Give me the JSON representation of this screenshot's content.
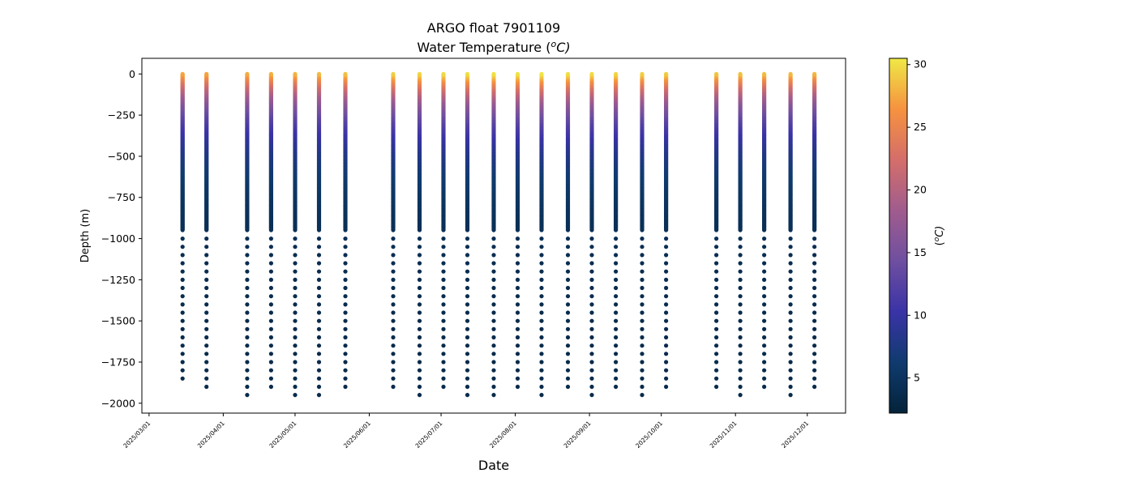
{
  "chart_data": {
    "type": "scatter",
    "title": "ARGO float 7901109",
    "subtitle": "Water Temperature (",
    "subtitle_unit_sup": "o",
    "subtitle_unit": "C)",
    "xlabel": "Date",
    "ylabel": "Depth (m)",
    "ylim": [
      -2060,
      95
    ],
    "xlim": [
      "2025-02-26",
      "2025-12-17"
    ],
    "grid": false,
    "x_ticks": [
      "2025/03/01",
      "2025/04/01",
      "2025/05/01",
      "2025/06/01",
      "2025/07/01",
      "2025/08/01",
      "2025/09/01",
      "2025/10/01",
      "2025/11/01",
      "2025/12/01"
    ],
    "y_ticks": [
      0,
      -250,
      -500,
      -750,
      -1000,
      -1250,
      -1500,
      -1750,
      -2000
    ],
    "y_tick_labels": [
      "0",
      "−250",
      "−500",
      "−750",
      "−1000",
      "−1250",
      "−1500",
      "−1750",
      "−2000"
    ],
    "colorbar": {
      "label_prefix": "(",
      "label_sup": "o",
      "label_suffix": "C)",
      "range": [
        2.2,
        30.5
      ],
      "ticks": [
        5,
        10,
        15,
        20,
        25,
        30
      ],
      "colormap": "thermal",
      "colors": [
        "#04233a",
        "#103b6e",
        "#3a33a6",
        "#6f4fa0",
        "#a05c8e",
        "#d46e6a",
        "#f6923f",
        "#efe946"
      ]
    },
    "profiles": [
      {
        "date": "2025-03-15",
        "max_depth": 1880,
        "surface_temp": 27.5
      },
      {
        "date": "2025-03-25",
        "max_depth": 1930,
        "surface_temp": 27.5
      },
      {
        "date": "2025-04-11",
        "max_depth": 1980,
        "surface_temp": 27.8
      },
      {
        "date": "2025-04-21",
        "max_depth": 1930,
        "surface_temp": 28.0
      },
      {
        "date": "2025-05-01",
        "max_depth": 1980,
        "surface_temp": 28.2
      },
      {
        "date": "2025-05-11",
        "max_depth": 1980,
        "surface_temp": 28.5
      },
      {
        "date": "2025-05-22",
        "max_depth": 1930,
        "surface_temp": 28.8
      },
      {
        "date": "2025-06-11",
        "max_depth": 1930,
        "surface_temp": 29.5
      },
      {
        "date": "2025-06-22",
        "max_depth": 1980,
        "surface_temp": 29.8
      },
      {
        "date": "2025-07-02",
        "max_depth": 1930,
        "surface_temp": 30.0
      },
      {
        "date": "2025-07-12",
        "max_depth": 1980,
        "surface_temp": 30.2
      },
      {
        "date": "2025-07-23",
        "max_depth": 1980,
        "surface_temp": 30.3
      },
      {
        "date": "2025-08-02",
        "max_depth": 1930,
        "surface_temp": 30.4
      },
      {
        "date": "2025-08-12",
        "max_depth": 1980,
        "surface_temp": 30.5
      },
      {
        "date": "2025-08-23",
        "max_depth": 1930,
        "surface_temp": 30.2
      },
      {
        "date": "2025-09-02",
        "max_depth": 1980,
        "surface_temp": 30.0
      },
      {
        "date": "2025-09-12",
        "max_depth": 1930,
        "surface_temp": 29.8
      },
      {
        "date": "2025-09-23",
        "max_depth": 1980,
        "surface_temp": 29.5
      },
      {
        "date": "2025-10-03",
        "max_depth": 1930,
        "surface_temp": 29.3
      },
      {
        "date": "2025-10-24",
        "max_depth": 1930,
        "surface_temp": 29.0
      },
      {
        "date": "2025-11-03",
        "max_depth": 1980,
        "surface_temp": 28.8
      },
      {
        "date": "2025-11-13",
        "max_depth": 1930,
        "surface_temp": 28.6
      },
      {
        "date": "2025-11-24",
        "max_depth": 1980,
        "surface_temp": 28.5
      },
      {
        "date": "2025-12-04",
        "max_depth": 1930,
        "surface_temp": 28.3
      }
    ]
  }
}
